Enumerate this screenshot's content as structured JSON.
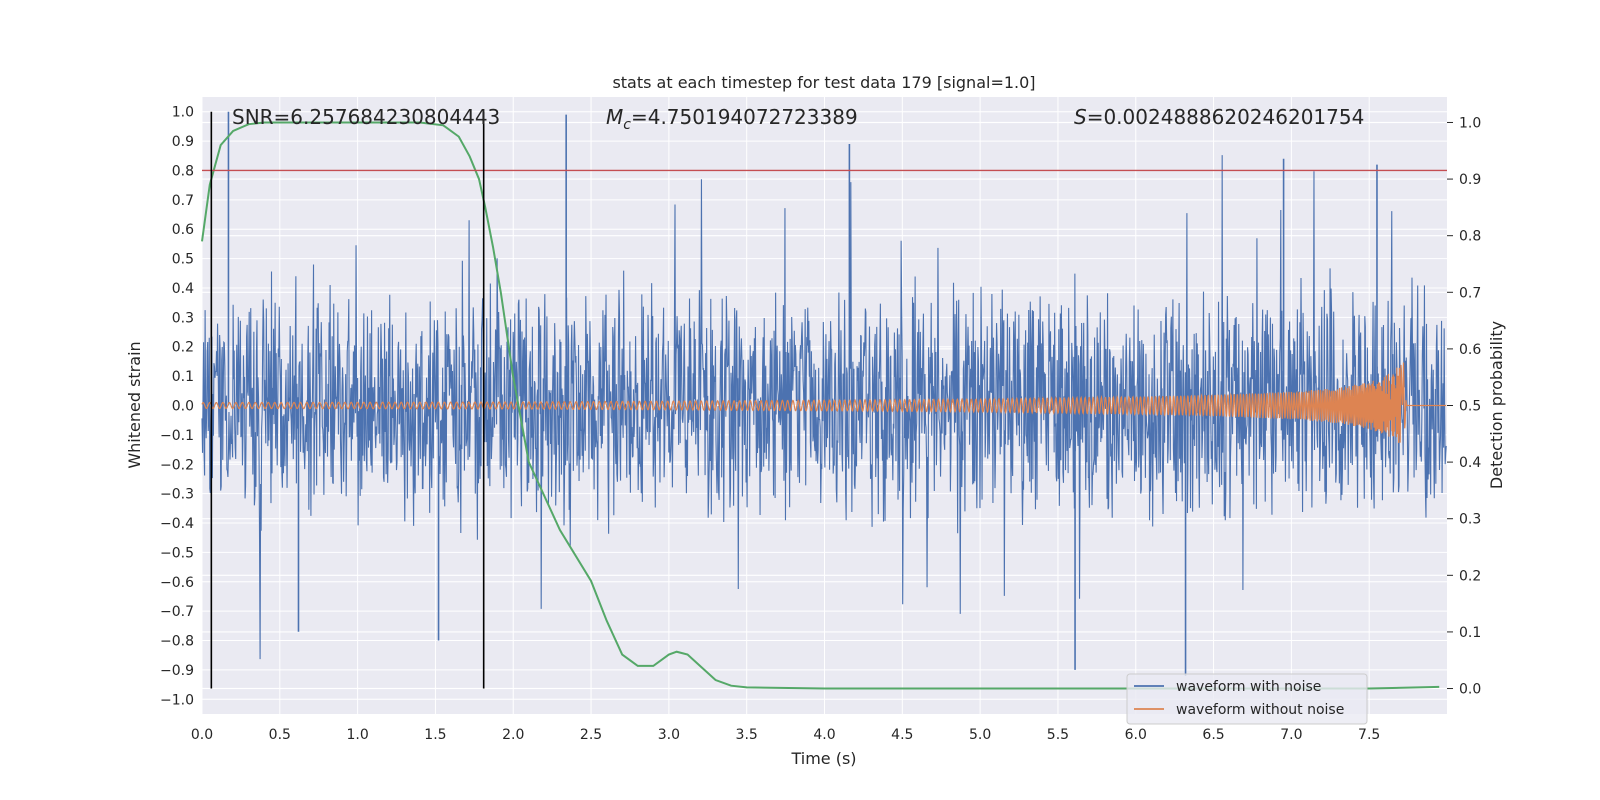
{
  "chart_data": {
    "type": "line",
    "title": "stats at each timestep for test data 179 [signal=1.0]",
    "xlabel": "Time (s)",
    "ylabel": "Whitened strain",
    "y2label": "Detection probability",
    "xlim": [
      0.0,
      8.0
    ],
    "ylim": [
      -1.05,
      1.05
    ],
    "y2lim": [
      -0.045,
      1.045
    ],
    "xticks": [
      "0.0",
      "0.5",
      "1.0",
      "1.5",
      "2.0",
      "2.5",
      "3.0",
      "3.5",
      "4.0",
      "4.5",
      "5.0",
      "5.5",
      "6.0",
      "6.5",
      "7.0",
      "7.5"
    ],
    "yticks": [
      "1.0",
      "0.9",
      "0.8",
      "0.7",
      "0.6",
      "0.5",
      "0.4",
      "0.3",
      "0.2",
      "0.1",
      "0.0",
      "−0.1",
      "−0.2",
      "−0.3",
      "−0.4",
      "−0.5",
      "−0.6",
      "−0.7",
      "−0.8",
      "−0.9",
      "−1.0"
    ],
    "y2ticks": [
      "1.0",
      "0.9",
      "0.8",
      "0.7",
      "0.6",
      "0.5",
      "0.4",
      "0.3",
      "0.2",
      "0.1",
      "0.0"
    ],
    "stats": {
      "snr": "SNR=6.257684230804443",
      "mc_symbol": "M",
      "mc_sub": "c",
      "mc_value": "=4.750194072723389",
      "s_symbol": "S",
      "s_value": "=0.0024888620246201754"
    },
    "threshold": {
      "value": 0.8,
      "color": "#c44e52"
    },
    "vertical_markers": [
      0.06,
      1.81
    ],
    "series": [
      {
        "name": "waveform with noise",
        "color": "#4c72b0",
        "description": "noisy whitened strain, amplitude roughly within ±0.5 with spikes to 1.0 and -0.95",
        "peaks": [
          [
            0.17,
            1.0
          ],
          [
            2.34,
            0.99
          ],
          [
            4.16,
            0.89
          ],
          [
            6.95,
            0.84
          ],
          [
            7.55,
            0.82
          ],
          [
            5.61,
            -0.9
          ],
          [
            6.32,
            -0.92
          ],
          [
            1.52,
            -0.8
          ],
          [
            0.62,
            -0.77
          ]
        ]
      },
      {
        "name": "waveform without noise",
        "color": "#dd8452",
        "description": "chirp signal with growing amplitude until merger",
        "envelope": [
          [
            0.0,
            0.01
          ],
          [
            2.0,
            0.012
          ],
          [
            4.0,
            0.018
          ],
          [
            5.0,
            0.022
          ],
          [
            6.0,
            0.03
          ],
          [
            6.5,
            0.036
          ],
          [
            7.0,
            0.047
          ],
          [
            7.3,
            0.06
          ],
          [
            7.5,
            0.08
          ],
          [
            7.6,
            0.1
          ],
          [
            7.68,
            0.13
          ],
          [
            7.72,
            0.15
          ],
          [
            7.74,
            0.0
          ],
          [
            8.0,
            0.0
          ]
        ]
      },
      {
        "name": "detection probability",
        "color": "#55a868",
        "axis": "right",
        "x": [
          0.0,
          0.05,
          0.12,
          0.2,
          0.3,
          0.4,
          0.6,
          1.0,
          1.4,
          1.55,
          1.65,
          1.72,
          1.78,
          1.82,
          1.87,
          1.92,
          2.0,
          2.1,
          2.3,
          2.5,
          2.6,
          2.7,
          2.8,
          2.9,
          3.0,
          3.05,
          3.12,
          3.2,
          3.3,
          3.4,
          3.5,
          4.0,
          5.0,
          6.0,
          7.0,
          7.5,
          7.95
        ],
        "y": [
          0.79,
          0.89,
          0.96,
          0.985,
          0.997,
          1.0,
          1.0,
          1.0,
          1.0,
          0.995,
          0.975,
          0.94,
          0.9,
          0.85,
          0.78,
          0.7,
          0.55,
          0.4,
          0.28,
          0.19,
          0.12,
          0.06,
          0.04,
          0.04,
          0.06,
          0.065,
          0.06,
          0.04,
          0.015,
          0.005,
          0.002,
          0.0,
          0.0,
          0.0,
          0.0,
          0.0,
          0.003
        ]
      }
    ],
    "legend": {
      "position": "lower-right",
      "entries": [
        "waveform with noise",
        "waveform without noise"
      ]
    },
    "grid": true,
    "background": "#eaeaf2"
  }
}
